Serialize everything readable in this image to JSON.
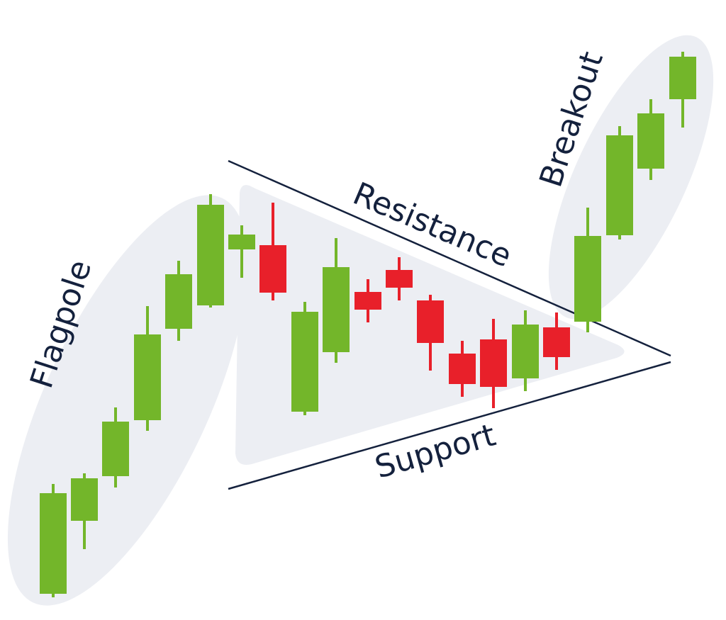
{
  "labels": {
    "flagpole": "Flagpole",
    "resistance": "Resistance",
    "support": "Support",
    "breakout": "Breakout"
  },
  "colors": {
    "bull": "#73b62a",
    "bear": "#e8202a",
    "region": "#eceef3",
    "line": "#14213d",
    "text": "#14213d"
  },
  "candles": [
    {
      "dir": "up",
      "group": "flagpole"
    },
    {
      "dir": "up",
      "group": "flagpole"
    },
    {
      "dir": "up",
      "group": "flagpole"
    },
    {
      "dir": "up",
      "group": "flagpole"
    },
    {
      "dir": "up",
      "group": "flagpole"
    },
    {
      "dir": "up",
      "group": "flagpole"
    },
    {
      "dir": "up",
      "group": "pennant"
    },
    {
      "dir": "down",
      "group": "pennant"
    },
    {
      "dir": "up",
      "group": "pennant"
    },
    {
      "dir": "up",
      "group": "pennant"
    },
    {
      "dir": "down",
      "group": "pennant"
    },
    {
      "dir": "down",
      "group": "pennant"
    },
    {
      "dir": "down",
      "group": "pennant"
    },
    {
      "dir": "down",
      "group": "pennant"
    },
    {
      "dir": "down",
      "group": "pennant"
    },
    {
      "dir": "up",
      "group": "pennant"
    },
    {
      "dir": "down",
      "group": "pennant"
    },
    {
      "dir": "up",
      "group": "breakout"
    },
    {
      "dir": "up",
      "group": "breakout"
    },
    {
      "dir": "up",
      "group": "breakout"
    },
    {
      "dir": "up",
      "group": "breakout"
    }
  ]
}
